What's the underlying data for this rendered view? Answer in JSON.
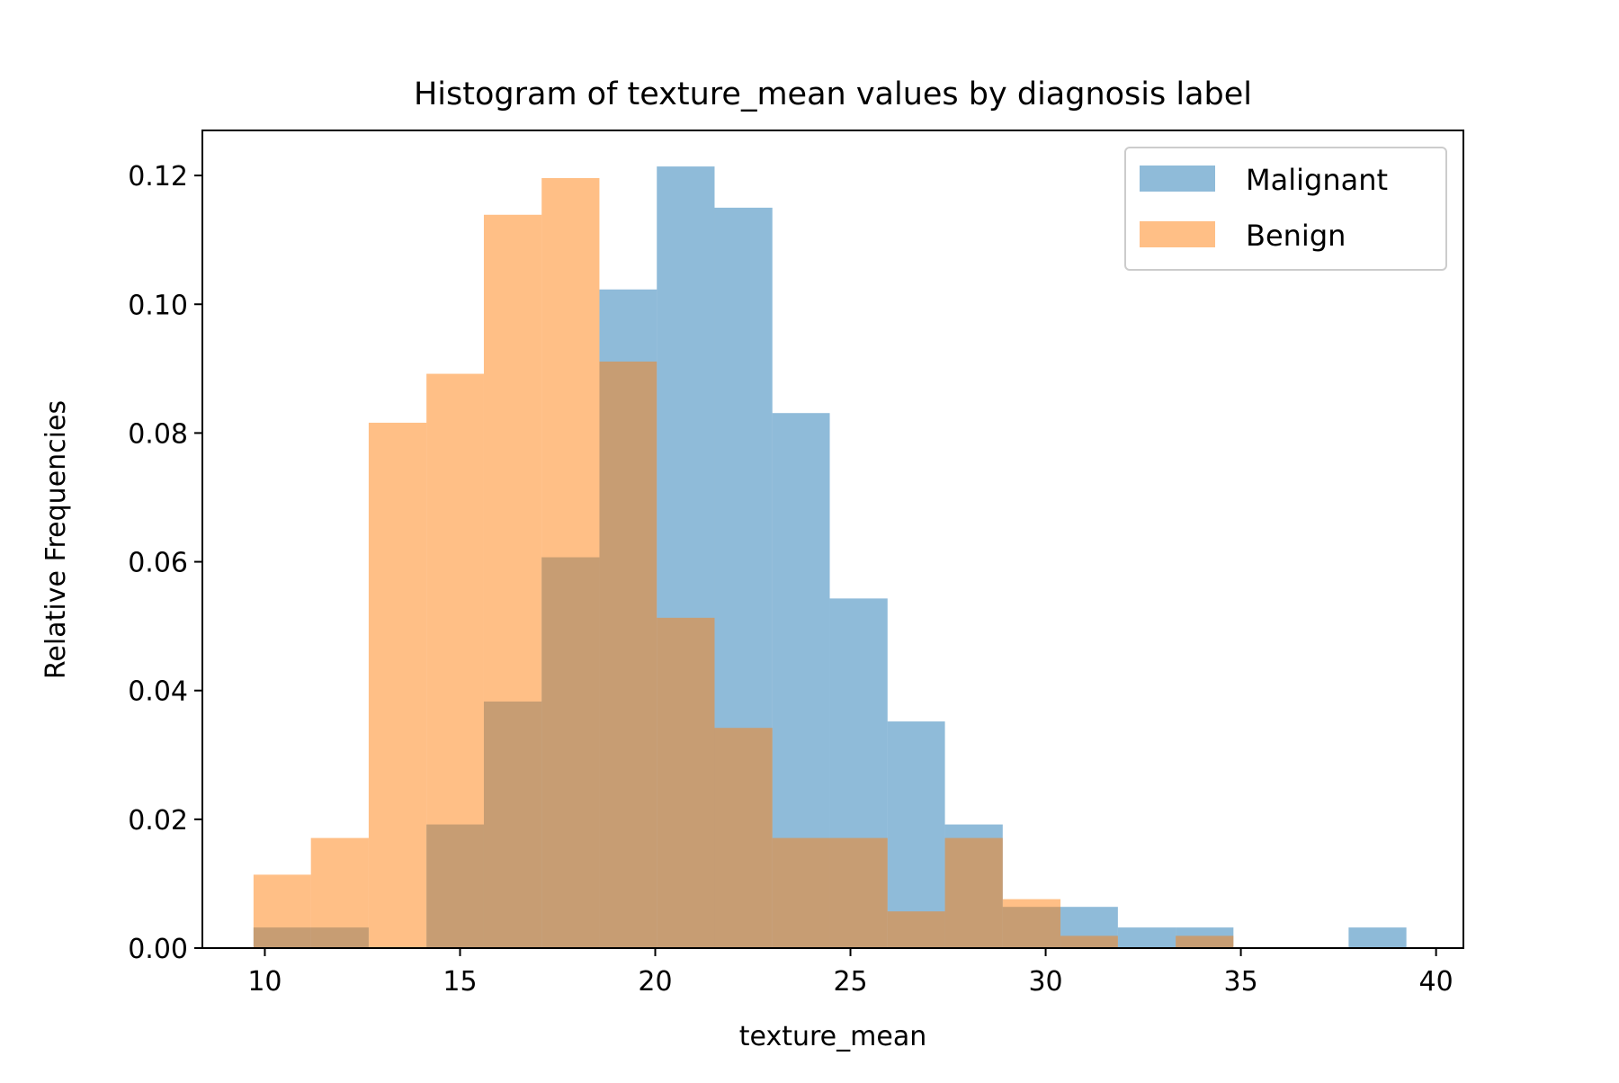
{
  "chart_data": {
    "type": "bar",
    "title": "Histogram of texture_mean values by diagnosis label",
    "xlabel": "texture_mean",
    "ylabel": "Relative Frequencies",
    "xlim": [
      8.4,
      40.7
    ],
    "ylim": [
      0,
      0.127
    ],
    "xticks": [
      10,
      15,
      20,
      25,
      30,
      35,
      40
    ],
    "xtick_labels": [
      "10",
      "15",
      "20",
      "25",
      "30",
      "35",
      "40"
    ],
    "yticks": [
      0,
      0.02,
      0.04,
      0.06,
      0.08,
      0.1,
      0.12
    ],
    "ytick_labels": [
      "0.00",
      "0.02",
      "0.04",
      "0.06",
      "0.08",
      "0.10",
      "0.12"
    ],
    "grid": false,
    "legend_position": "top-right",
    "series": [
      {
        "name": "Malignant",
        "color": "#1f77b4",
        "opacity": 0.5,
        "bins": [
          {
            "x0": 9.71,
            "x1": 11.18,
            "value": 0.0032
          },
          {
            "x0": 11.18,
            "x1": 12.66,
            "value": 0.0032
          },
          {
            "x0": 12.66,
            "x1": 14.14,
            "value": 0.0
          },
          {
            "x0": 14.14,
            "x1": 15.61,
            "value": 0.0192
          },
          {
            "x0": 15.61,
            "x1": 17.09,
            "value": 0.0383
          },
          {
            "x0": 17.09,
            "x1": 18.57,
            "value": 0.0607
          },
          {
            "x0": 18.57,
            "x1": 20.04,
            "value": 0.1023
          },
          {
            "x0": 20.04,
            "x1": 21.52,
            "value": 0.1214
          },
          {
            "x0": 21.52,
            "x1": 23.0,
            "value": 0.115
          },
          {
            "x0": 23.0,
            "x1": 24.47,
            "value": 0.0831
          },
          {
            "x0": 24.47,
            "x1": 25.95,
            "value": 0.0543
          },
          {
            "x0": 25.95,
            "x1": 27.42,
            "value": 0.0352
          },
          {
            "x0": 27.42,
            "x1": 28.9,
            "value": 0.0192
          },
          {
            "x0": 28.9,
            "x1": 30.38,
            "value": 0.0064
          },
          {
            "x0": 30.38,
            "x1": 31.85,
            "value": 0.0064
          },
          {
            "x0": 31.85,
            "x1": 33.33,
            "value": 0.0032
          },
          {
            "x0": 33.33,
            "x1": 34.81,
            "value": 0.0032
          },
          {
            "x0": 34.81,
            "x1": 36.28,
            "value": 0.0
          },
          {
            "x0": 36.28,
            "x1": 37.76,
            "value": 0.0
          },
          {
            "x0": 37.76,
            "x1": 39.24,
            "value": 0.0032
          }
        ]
      },
      {
        "name": "Benign",
        "color": "#ff7f0e",
        "opacity": 0.5,
        "bins": [
          {
            "x0": 9.71,
            "x1": 11.18,
            "value": 0.0114
          },
          {
            "x0": 11.18,
            "x1": 12.66,
            "value": 0.0171
          },
          {
            "x0": 12.66,
            "x1": 14.14,
            "value": 0.0816
          },
          {
            "x0": 14.14,
            "x1": 15.61,
            "value": 0.0892
          },
          {
            "x0": 15.61,
            "x1": 17.09,
            "value": 0.1139
          },
          {
            "x0": 17.09,
            "x1": 18.57,
            "value": 0.1196
          },
          {
            "x0": 18.57,
            "x1": 20.04,
            "value": 0.0911
          },
          {
            "x0": 20.04,
            "x1": 21.52,
            "value": 0.0513
          },
          {
            "x0": 21.52,
            "x1": 23.0,
            "value": 0.0342
          },
          {
            "x0": 23.0,
            "x1": 24.47,
            "value": 0.0171
          },
          {
            "x0": 24.47,
            "x1": 25.95,
            "value": 0.0171
          },
          {
            "x0": 25.95,
            "x1": 27.42,
            "value": 0.0057
          },
          {
            "x0": 27.42,
            "x1": 28.9,
            "value": 0.0171
          },
          {
            "x0": 28.9,
            "x1": 30.38,
            "value": 0.0076
          },
          {
            "x0": 30.38,
            "x1": 31.85,
            "value": 0.0019
          },
          {
            "x0": 31.85,
            "x1": 33.33,
            "value": 0.0
          },
          {
            "x0": 33.33,
            "x1": 34.81,
            "value": 0.0019
          }
        ]
      }
    ]
  }
}
